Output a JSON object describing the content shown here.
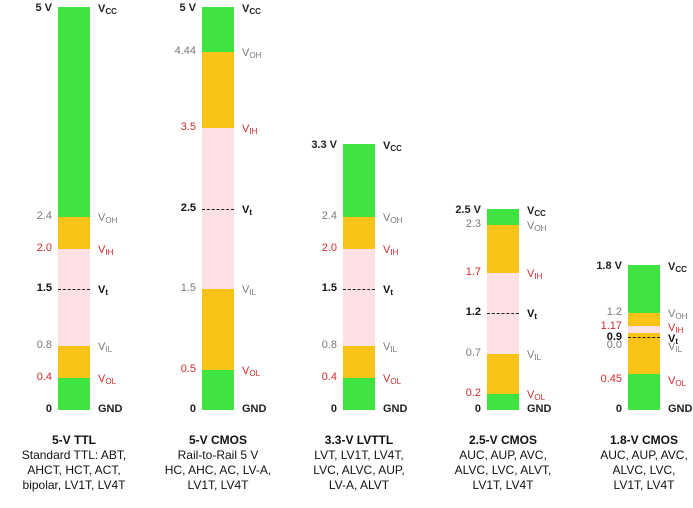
{
  "colors": {
    "green": "#3fe33f",
    "orange": "#f9c216",
    "pink": "#fde0e4",
    "gray_label": "#7a7a7a",
    "red_label": "#d42a2a"
  },
  "columns": [
    {
      "vcc": 5,
      "vcc_label": "5 V",
      "voh": 2.4,
      "vih": 2.0,
      "vt": 1.5,
      "vil": 0.8,
      "vol": 0.4,
      "labels": {
        "voh": "2.4",
        "vih": "2.0",
        "vt": "1.5",
        "vil": "0.8",
        "vol": "0.4",
        "gnd": "0"
      },
      "title": "5-V TTL",
      "desc": [
        "Standard TTL: ABT,",
        "AHCT, HCT, ACT,",
        "bipolar, LV1T, LV4T"
      ]
    },
    {
      "vcc": 5,
      "vcc_label": "5 V",
      "voh": 4.44,
      "vih": 3.5,
      "vt": 2.5,
      "vil": 1.5,
      "vol": 0.5,
      "labels": {
        "voh": "4.44",
        "vih": "3.5",
        "vt": "2.5",
        "vil": "1.5",
        "vol": "0.5",
        "gnd": "0"
      },
      "title": "5-V CMOS",
      "desc": [
        "Rail-to-Rail 5 V",
        "HC, AHC, AC, LV-A,",
        "LV1T, LV4T"
      ]
    },
    {
      "vcc": 3.3,
      "vcc_label": "3.3 V",
      "voh": 2.4,
      "vih": 2.0,
      "vt": 1.5,
      "vil": 0.8,
      "vol": 0.4,
      "labels": {
        "voh": "2.4",
        "vih": "2.0",
        "vt": "1.5",
        "vil": "0.8",
        "vol": "0.4",
        "gnd": "0"
      },
      "title": "3.3-V LVTTL",
      "desc": [
        "LVT, LV1T, LV4T,",
        "LVC, ALVC, AUP,",
        "LV-A, ALVT"
      ]
    },
    {
      "vcc": 2.5,
      "vcc_label": "2.5 V",
      "voh": 2.3,
      "vih": 1.7,
      "vt": 1.2,
      "vil": 0.7,
      "vol": 0.2,
      "labels": {
        "voh": "2.3",
        "vih": "1.7",
        "vt": "1.2",
        "vil": "0.7",
        "vol": "0.2",
        "gnd": "0"
      },
      "title": "2.5-V CMOS",
      "desc": [
        "AUC, AUP, AVC,",
        "ALVC, LVC, ALVT,",
        "LV1T, LV4T"
      ]
    },
    {
      "vcc": 1.8,
      "vcc_label": "1.8 V",
      "voh": 1.2,
      "vih": 1.17,
      "vt": 0.9,
      "vil": 0.0,
      "vol": 0.45,
      "labels": {
        "voh": "1.2",
        "vih": "1.17",
        "vt": "0.9",
        "vil": "0.0",
        "vol": "0.45",
        "gnd": "0"
      },
      "title": "1.8-V CMOS",
      "desc": [
        "AUC, AUP, AVC,",
        "ALVC, LVC,",
        "LV1T, LV4T"
      ]
    }
  ],
  "rail_names": {
    "vcc": {
      "main": "V",
      "sub": "CC"
    },
    "voh": {
      "main": "V",
      "sub": "OH"
    },
    "vih": {
      "main": "V",
      "sub": "IH"
    },
    "vt": {
      "main": "V",
      "sub": "t"
    },
    "vil": {
      "main": "V",
      "sub": "IL"
    },
    "vol": {
      "main": "V",
      "sub": "OL"
    },
    "gnd": "GND"
  }
}
